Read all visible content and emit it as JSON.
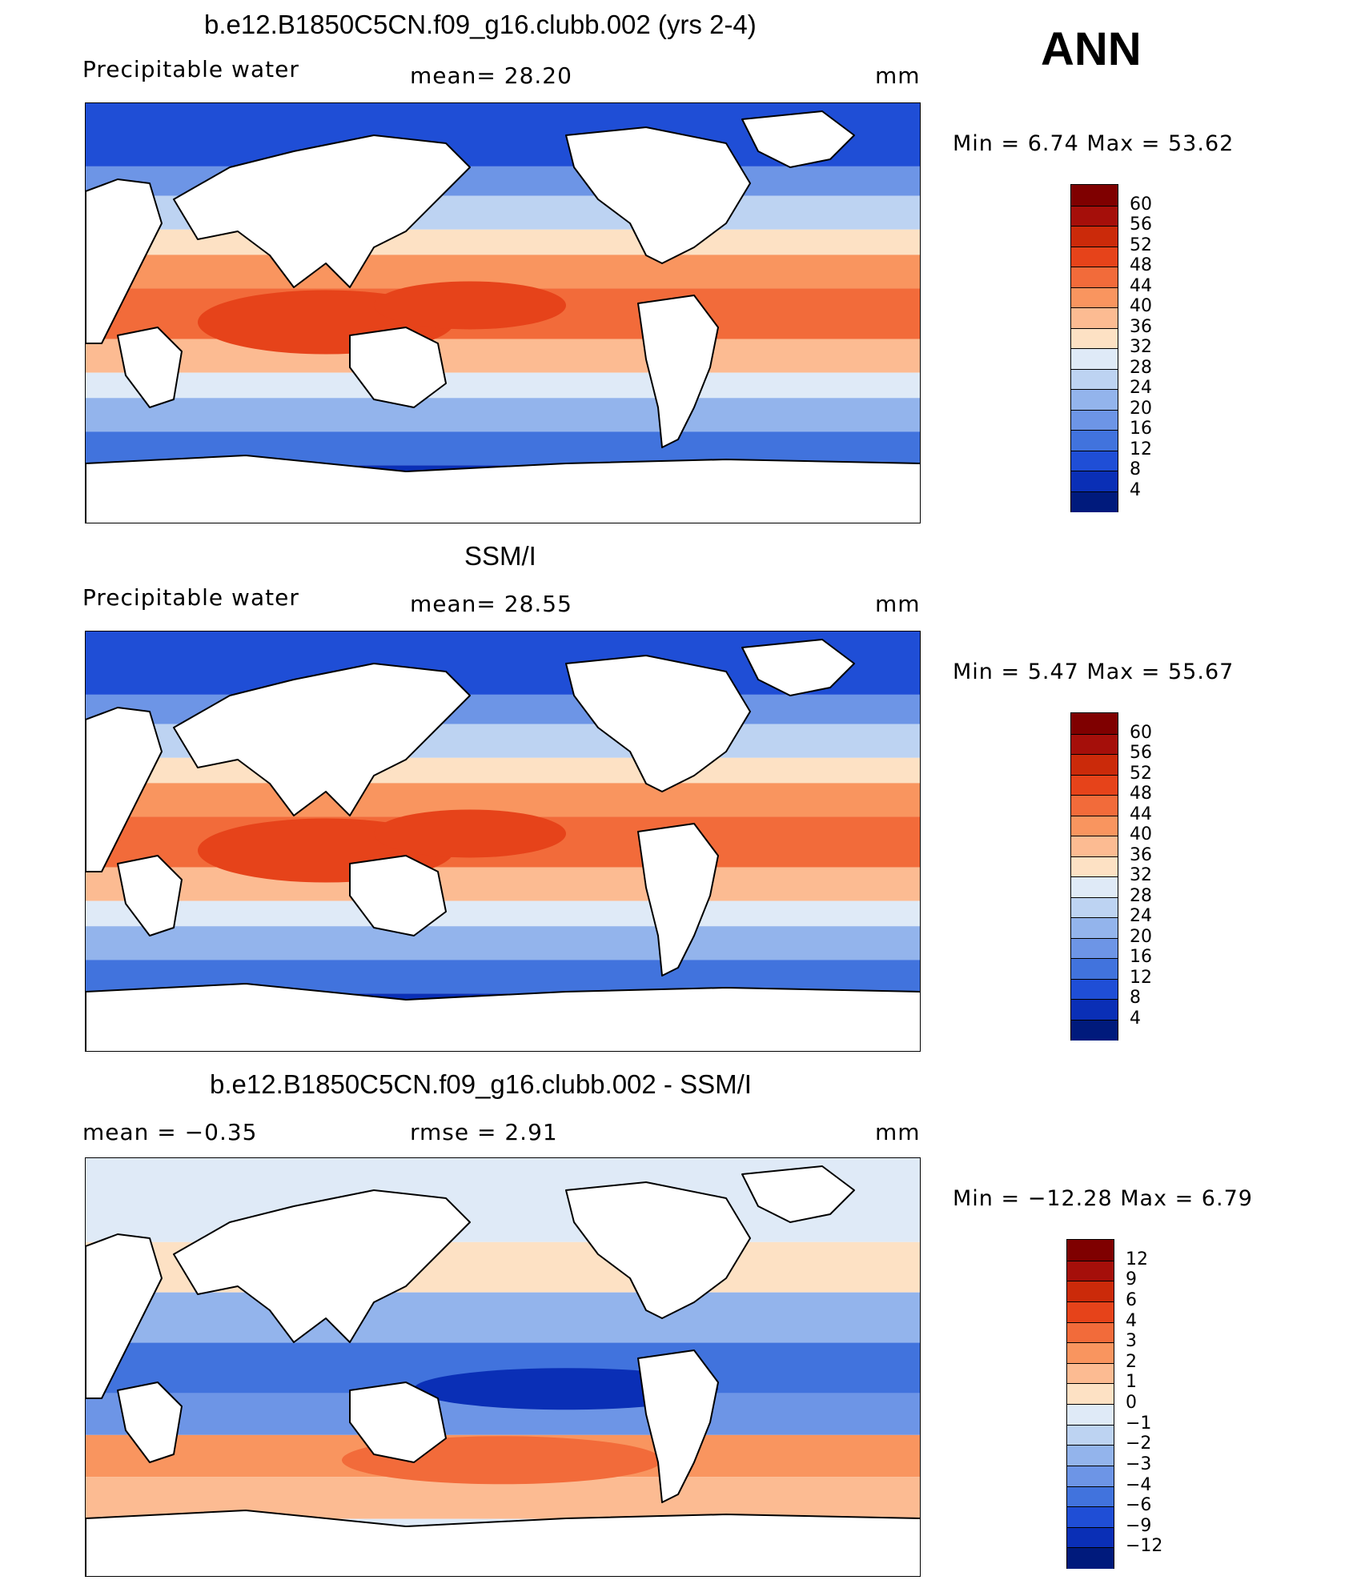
{
  "season": "ANN",
  "panels": [
    {
      "id": "model",
      "title": "b.e12.B1850C5CN.f09_g16.clubb.002 (yrs 2-4)",
      "left_label": "Precipitable water",
      "mid_label": "mean=   28.20",
      "right_label": "mm",
      "minmax": "Min =    6.74 Max =   53.62",
      "colorbar": {
        "ticks": [
          "60",
          "56",
          "52",
          "48",
          "44",
          "40",
          "36",
          "32",
          "28",
          "24",
          "20",
          "16",
          "12",
          "8",
          "4"
        ],
        "colors": [
          "#7f0000",
          "#a50f0a",
          "#cb2a0a",
          "#e6431a",
          "#f26b3a",
          "#f9955f",
          "#fcbb92",
          "#fde1c4",
          "#dfeaf7",
          "#bdd3f2",
          "#93b4ec",
          "#6d95e6",
          "#4173dd",
          "#1f4ed6",
          "#0a2fb6",
          "#001a7c"
        ]
      }
    },
    {
      "id": "obs",
      "title": "SSM/I",
      "left_label": "Precipitable water",
      "mid_label": "mean=   28.55",
      "right_label": "mm",
      "minmax": "Min =    5.47 Max =   55.67",
      "colorbar": {
        "ticks": [
          "60",
          "56",
          "52",
          "48",
          "44",
          "40",
          "36",
          "32",
          "28",
          "24",
          "20",
          "16",
          "12",
          "8",
          "4"
        ],
        "colors": [
          "#7f0000",
          "#a50f0a",
          "#cb2a0a",
          "#e6431a",
          "#f26b3a",
          "#f9955f",
          "#fcbb92",
          "#fde1c4",
          "#dfeaf7",
          "#bdd3f2",
          "#93b4ec",
          "#6d95e6",
          "#4173dd",
          "#1f4ed6",
          "#0a2fb6",
          "#001a7c"
        ]
      }
    },
    {
      "id": "diff",
      "title": "b.e12.B1850C5CN.f09_g16.clubb.002 - SSM/I",
      "left_label": "mean =   −0.35",
      "mid_label": "rmse =    2.91",
      "right_label": "mm",
      "minmax": "Min = −12.28 Max =    6.79",
      "colorbar": {
        "ticks": [
          "12",
          "9",
          "6",
          "4",
          "3",
          "2",
          "1",
          "0",
          "−1",
          "−2",
          "−3",
          "−4",
          "−6",
          "−9",
          "−12"
        ],
        "colors": [
          "#7f0000",
          "#a50f0a",
          "#cb2a0a",
          "#e6431a",
          "#f26b3a",
          "#f9955f",
          "#fcbb92",
          "#fde1c4",
          "#dfeaf7",
          "#bdd3f2",
          "#93b4ec",
          "#6d95e6",
          "#4173dd",
          "#1f4ed6",
          "#0a2fb6",
          "#001a7c"
        ]
      }
    }
  ]
}
